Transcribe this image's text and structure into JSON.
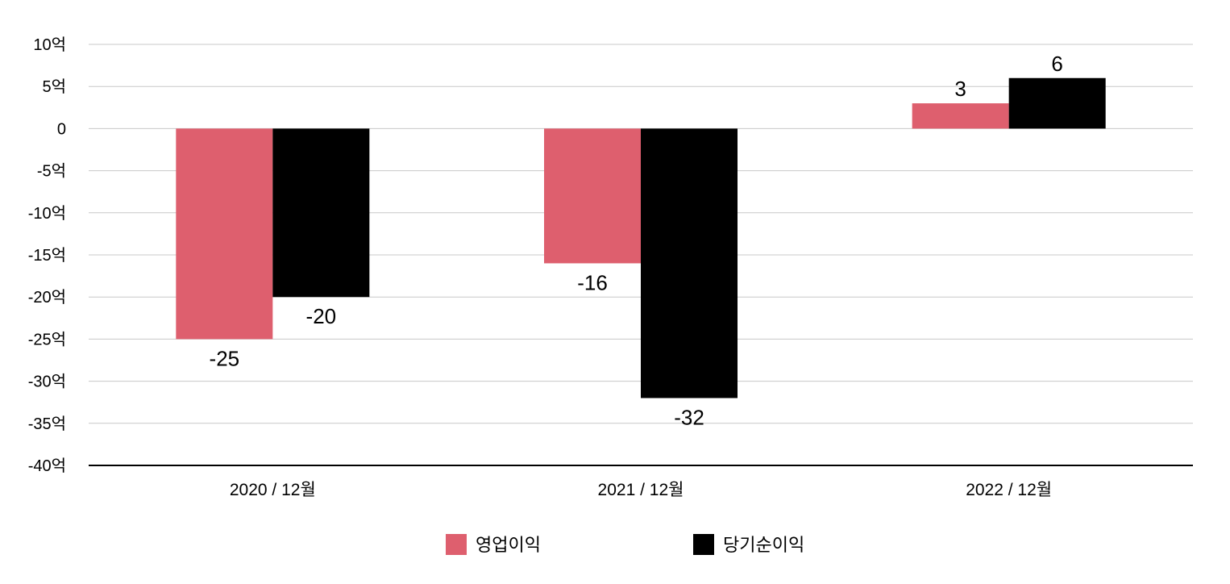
{
  "chart_data": {
    "type": "bar",
    "categories": [
      "2020 / 12월",
      "2021 / 12월",
      "2022 / 12월"
    ],
    "series": [
      {
        "name": "영업이익",
        "values": [
          -25,
          -16,
          3
        ],
        "color": "#de5f6e"
      },
      {
        "name": "당기순이익",
        "values": [
          -20,
          -32,
          6
        ],
        "color": "#000000"
      }
    ],
    "data_labels": [
      [
        "-25",
        "-16",
        "3"
      ],
      [
        "-20",
        "-32",
        "6"
      ]
    ],
    "y_ticks": [
      10,
      5,
      0,
      -5,
      -10,
      -15,
      -20,
      -25,
      -30,
      -35,
      -40
    ],
    "y_tick_labels": [
      "10억",
      "5억",
      "0",
      "-5억",
      "-10억",
      "-15억",
      "-20억",
      "-25억",
      "-30억",
      "-35억",
      "-40억"
    ],
    "ylim": [
      -40,
      10
    ],
    "grid": true,
    "legend_position": "bottom"
  }
}
